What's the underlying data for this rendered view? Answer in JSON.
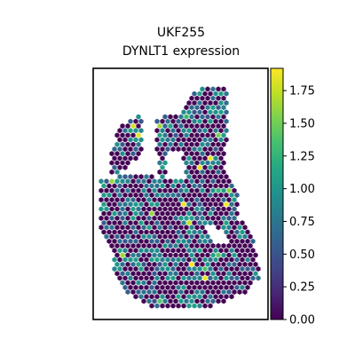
{
  "chart_data": {
    "type": "heatmap",
    "title_lines": [
      "UKF255",
      "DYNLT1 expression"
    ],
    "xlabel": "",
    "ylabel": "",
    "colormap": "viridis",
    "colorbar": {
      "range": [
        0,
        1.92
      ],
      "ticks": [
        "0.00",
        "0.25",
        "0.50",
        "0.75",
        "1.00",
        "1.25",
        "1.50",
        "1.75"
      ],
      "tick_values": [
        0,
        0.25,
        0.5,
        0.75,
        1.0,
        1.25,
        1.5,
        1.75
      ]
    },
    "spot_value_distribution": {
      "min": 0.0,
      "max": 1.92,
      "fraction_zero": 0.55,
      "typical_nonzero_range": [
        0.5,
        1.1
      ]
    },
    "grid": false,
    "axes_ticks": false
  }
}
